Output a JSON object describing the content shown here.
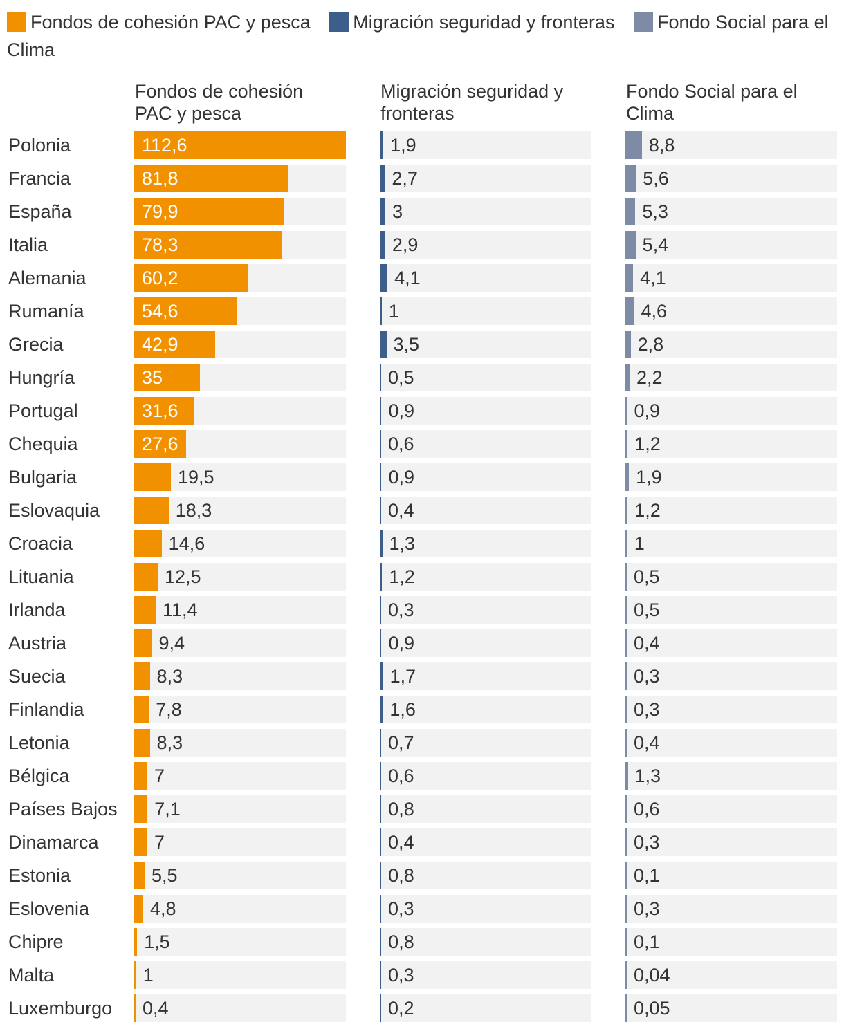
{
  "legend": [
    {
      "label": "Fondos de cohesión PAC y pesca",
      "color": "#f29100"
    },
    {
      "label": "Migración seguridad y fronteras",
      "color": "#3d5e8a"
    },
    {
      "label": "Fondo Social para el Clima",
      "color": "#7d8ba5"
    }
  ],
  "chart_data": {
    "type": "bar",
    "orientation": "horizontal",
    "layout": "small-multiples",
    "legend_position": "top",
    "decimal_separator": ",",
    "categories": [
      "Polonia",
      "Francia",
      "España",
      "Italia",
      "Alemania",
      "Rumanía",
      "Grecia",
      "Hungría",
      "Portugal",
      "Chequia",
      "Bulgaria",
      "Eslovaquia",
      "Croacia",
      "Lituania",
      "Irlanda",
      "Austria",
      "Suecia",
      "Finlandia",
      "Letonia",
      "Bélgica",
      "Países Bajos",
      "Dinamarca",
      "Estonia",
      "Eslovenia",
      "Chipre",
      "Malta",
      "Luxemburgo"
    ],
    "series": [
      {
        "name": "Fondos de cohesión PAC y pesca",
        "color": "#f29100",
        "max": 112.6,
        "values": [
          112.6,
          81.8,
          79.9,
          78.3,
          60.2,
          54.6,
          42.9,
          35,
          31.6,
          27.6,
          19.5,
          18.3,
          14.6,
          12.5,
          11.4,
          9.4,
          8.3,
          7.8,
          8.3,
          7,
          7.1,
          7,
          5.5,
          4.8,
          1.5,
          1,
          0.4
        ]
      },
      {
        "name": "Migración seguridad y fronteras",
        "color": "#3d5e8a",
        "max": 112.6,
        "values": [
          1.9,
          2.7,
          3,
          2.9,
          4.1,
          1,
          3.5,
          0.5,
          0.9,
          0.6,
          0.9,
          0.4,
          1.3,
          1.2,
          0.3,
          0.9,
          1.7,
          1.6,
          0.7,
          0.6,
          0.8,
          0.4,
          0.8,
          0.3,
          0.8,
          0.3,
          0.2
        ]
      },
      {
        "name": "Fondo Social para el Clima",
        "color": "#7d8ba5",
        "max": 112.6,
        "values": [
          8.8,
          5.6,
          5.3,
          5.4,
          4.1,
          4.6,
          2.8,
          2.2,
          0.9,
          1.2,
          1.9,
          1.2,
          1,
          0.5,
          0.5,
          0.4,
          0.3,
          0.3,
          0.4,
          1.3,
          0.6,
          0.3,
          0.1,
          0.3,
          0.1,
          0.04,
          0.05
        ]
      }
    ]
  }
}
